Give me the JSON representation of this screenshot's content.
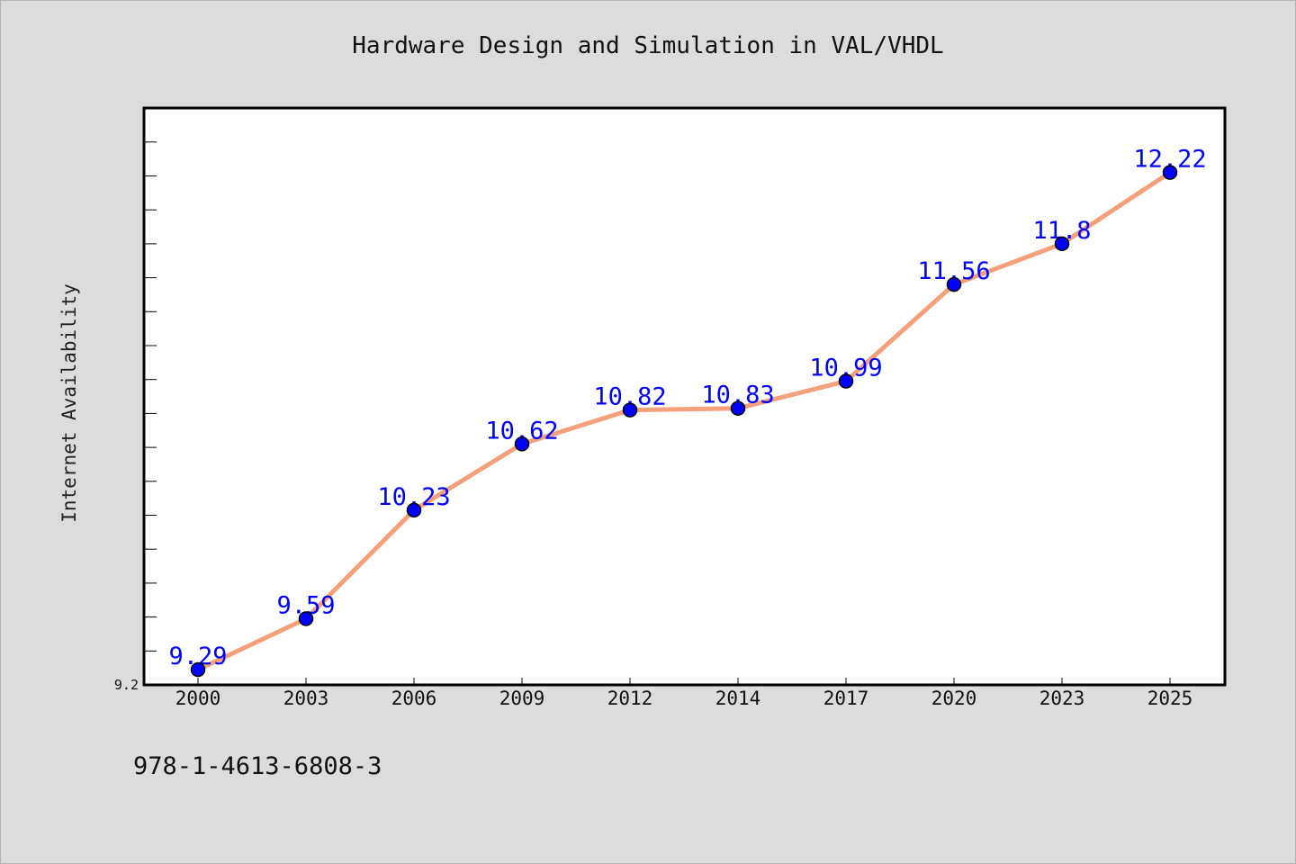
{
  "chart_data": {
    "type": "line",
    "title": "Hardware Design and Simulation in VAL/VHDL",
    "xlabel": "",
    "ylabel": "Internet Availability",
    "categories": [
      "2000",
      "2003",
      "2006",
      "2009",
      "2012",
      "2014",
      "2017",
      "2020",
      "2023",
      "2025"
    ],
    "series": [
      {
        "values": [
          9.29,
          9.59,
          10.23,
          10.62,
          10.82,
          10.83,
          10.99,
          11.56,
          11.8,
          12.22
        ]
      }
    ],
    "data_labels": [
      "9.29",
      "9.59",
      "10.23",
      "10.62",
      "10.82",
      "10.83",
      "10.99",
      "11.56",
      "11.8",
      "12.22"
    ],
    "y_tick_labels": [
      {
        "value": 9.2,
        "label": "9.2"
      }
    ],
    "ylim": [
      9.2,
      12.6
    ],
    "grid": false,
    "legend": "none",
    "colors": {
      "line": "#f4a07a",
      "marker": "#0000ff",
      "data_label": "#0000ff",
      "plot_background": "#ffffff",
      "page_background": "#dcdcdc"
    }
  },
  "footer": {
    "isbn": "978-1-4613-6808-3"
  }
}
